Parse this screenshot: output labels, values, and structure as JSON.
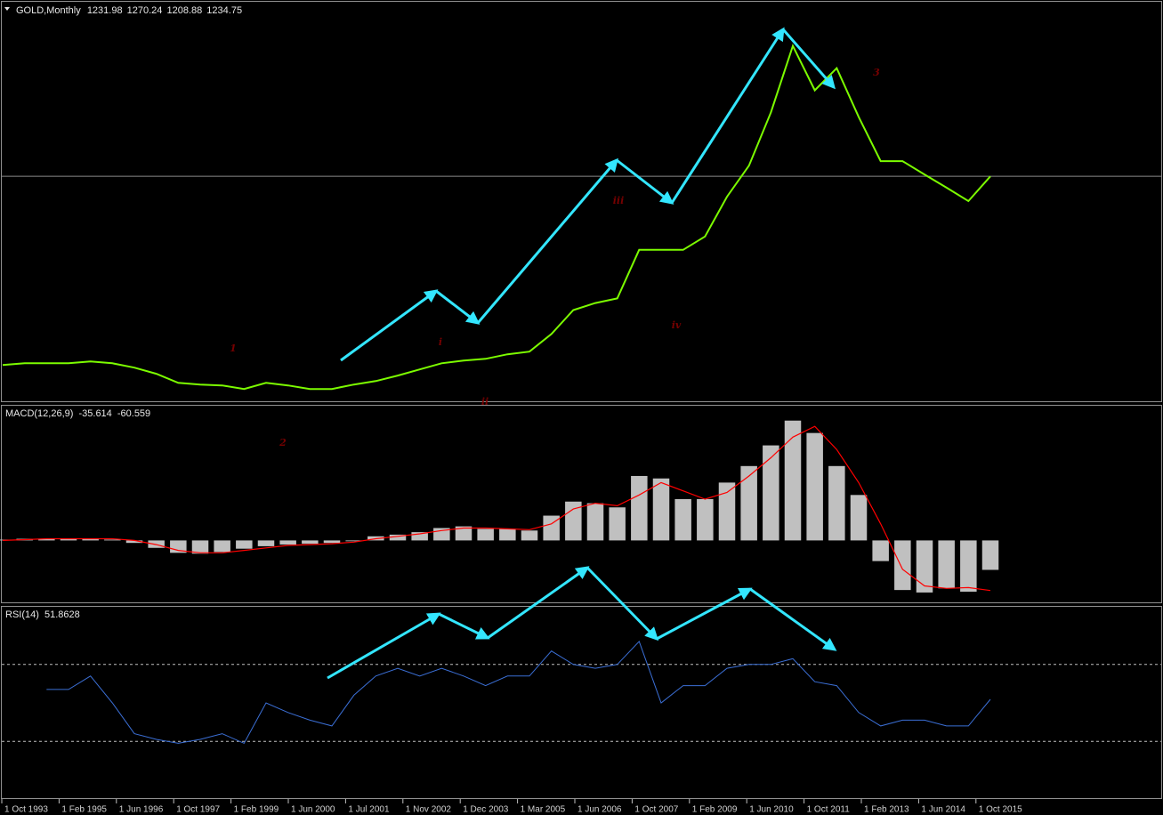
{
  "header": {
    "symbol": "GOLD,Monthly",
    "open": 1231.98,
    "high": 1270.24,
    "low": 1208.88
  },
  "chart_data": [
    {
      "type": "line",
      "title": "GOLD,Monthly",
      "color": "#7cfc00",
      "ylim": [
        207,
        2029
      ],
      "values": [
        376,
        384,
        384,
        384,
        392,
        384,
        364,
        336,
        295,
        287,
        283,
        267,
        295,
        283,
        267,
        267,
        287,
        303,
        328,
        356,
        384,
        396,
        404,
        425,
        437,
        517,
        626,
        658,
        679,
        900,
        900,
        900,
        961,
        1142,
        1283,
        1525,
        1828,
        1626,
        1727,
        1505,
        1304,
        1304,
        1243,
        1183,
        1122,
        1234.75
      ]
    },
    {
      "type": "macd",
      "title": "MACD(12,26,9)",
      "histogram_color": "#c0c0c0",
      "signal_color": "#ff0000",
      "ylim": [
        -76,
        163
      ],
      "histogram": [
        1,
        2,
        2,
        2,
        2,
        1,
        -3,
        -9,
        -15,
        -16,
        -14,
        -10,
        -7,
        -5,
        -4,
        -3,
        -1,
        5,
        7,
        10,
        15,
        17,
        14,
        14,
        12,
        30,
        47,
        45,
        40,
        78,
        75,
        50,
        50,
        70,
        90,
        115,
        145,
        130,
        90,
        55,
        -25,
        -60,
        -63,
        -58,
        -62,
        -35.614
      ],
      "signal": [
        0,
        1,
        2,
        2,
        2,
        2,
        0,
        -5,
        -12,
        -15,
        -15,
        -12,
        -9,
        -6,
        -5,
        -4,
        -2,
        2,
        5,
        8,
        12,
        15,
        15,
        14,
        13,
        20,
        38,
        45,
        42,
        55,
        70,
        60,
        50,
        58,
        78,
        100,
        125,
        138,
        110,
        70,
        20,
        -35,
        -55,
        -58,
        -57,
        -60.559
      ]
    },
    {
      "type": "line",
      "title": "RSI(14)",
      "color": "#3b6fd6",
      "ylim": [
        0,
        100
      ],
      "levels": [
        30,
        70
      ],
      "values": [
        null,
        null,
        57,
        57,
        64,
        50,
        34,
        31,
        29,
        31,
        34,
        29,
        50,
        45,
        41,
        38,
        54,
        64,
        68,
        64,
        68,
        64,
        59,
        64,
        64,
        77,
        70,
        68,
        70,
        82,
        50,
        59,
        59,
        68,
        70,
        70,
        73,
        61,
        59,
        45,
        38,
        41,
        41,
        38,
        38,
        51.8628
      ]
    }
  ],
  "date_labels": [
    "1 Oct 1993",
    "1 Feb 1995",
    "1 Jun 1996",
    "1 Oct 1997",
    "1 Feb 1999",
    "1 Jun 2000",
    "1 Jul 2001",
    "1 Nov 2002",
    "1 Dec 2003",
    "1 Mar 2005",
    "1 Jun 2006",
    "1 Oct 2007",
    "1 Feb 2009",
    "1 Jun 2010",
    "1 Oct 2011",
    "1 Feb 2013",
    "1 Jun 2014",
    "1 Oct 2015"
  ],
  "annotations": [
    "1",
    "2",
    "i",
    "ii",
    "iii",
    "iv",
    "3"
  ]
}
